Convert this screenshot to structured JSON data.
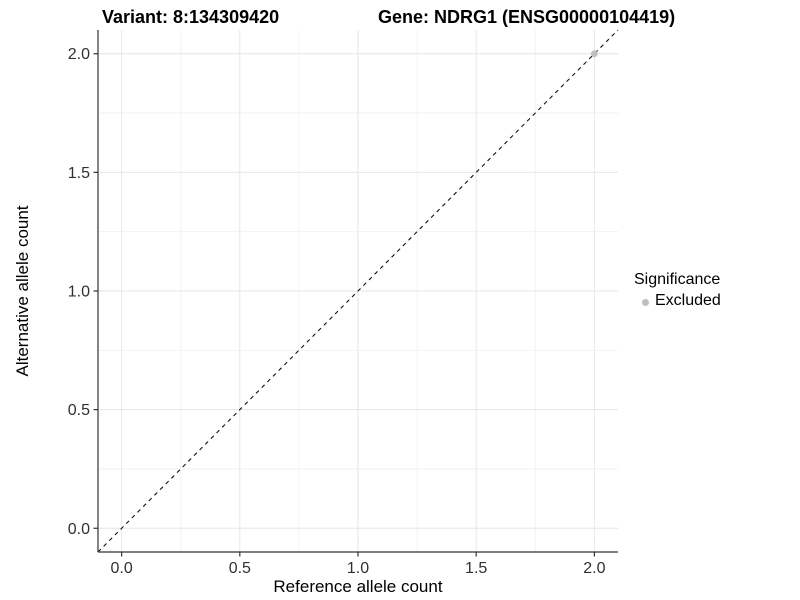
{
  "title": {
    "variant": "Variant: 8:134309420",
    "gene": "Gene: NDRG1 (ENSG00000104419)"
  },
  "legend": {
    "title": "Significance",
    "items": [
      {
        "label": "Excluded",
        "color": "#bebebe"
      }
    ]
  },
  "colors": {
    "background": "#ffffff",
    "grid_major": "#e6e6e6",
    "grid_minor": "#f2f2f2",
    "axis_line": "#333333",
    "tick_mark": "#333333",
    "tick_label": "#303030",
    "axis_title": "#000000",
    "identity_line": "#111111",
    "excluded_point": "#bebebe"
  },
  "chart_data": {
    "type": "scatter",
    "titles": [
      "Variant: 8:134309420",
      "Gene: NDRG1 (ENSG00000104419)"
    ],
    "xlabel": "Reference allele count",
    "ylabel": "Alternative allele count",
    "xlim": [
      -0.1,
      2.1
    ],
    "ylim": [
      -0.1,
      2.1
    ],
    "xticks": [
      0.0,
      0.5,
      1.0,
      1.5,
      2.0
    ],
    "xtick_labels": [
      "0.0",
      "0.5",
      "1.0",
      "1.5",
      "2.0"
    ],
    "yticks": [
      0.0,
      0.5,
      1.0,
      1.5,
      2.0
    ],
    "ytick_labels": [
      "0.0",
      "0.5",
      "1.0",
      "1.5",
      "2.0"
    ],
    "grid": {
      "major": true,
      "minor": true
    },
    "reference_line": {
      "kind": "identity",
      "style": "dashed",
      "x1": -0.1,
      "y1": -0.1,
      "x2": 2.1,
      "y2": 2.1
    },
    "series": [
      {
        "name": "Excluded",
        "color": "#bebebe",
        "points": [
          {
            "x": 2.0,
            "y": 2.0
          }
        ]
      }
    ],
    "legend": {
      "title": "Significance",
      "position": "right",
      "entries": [
        "Excluded"
      ]
    }
  }
}
